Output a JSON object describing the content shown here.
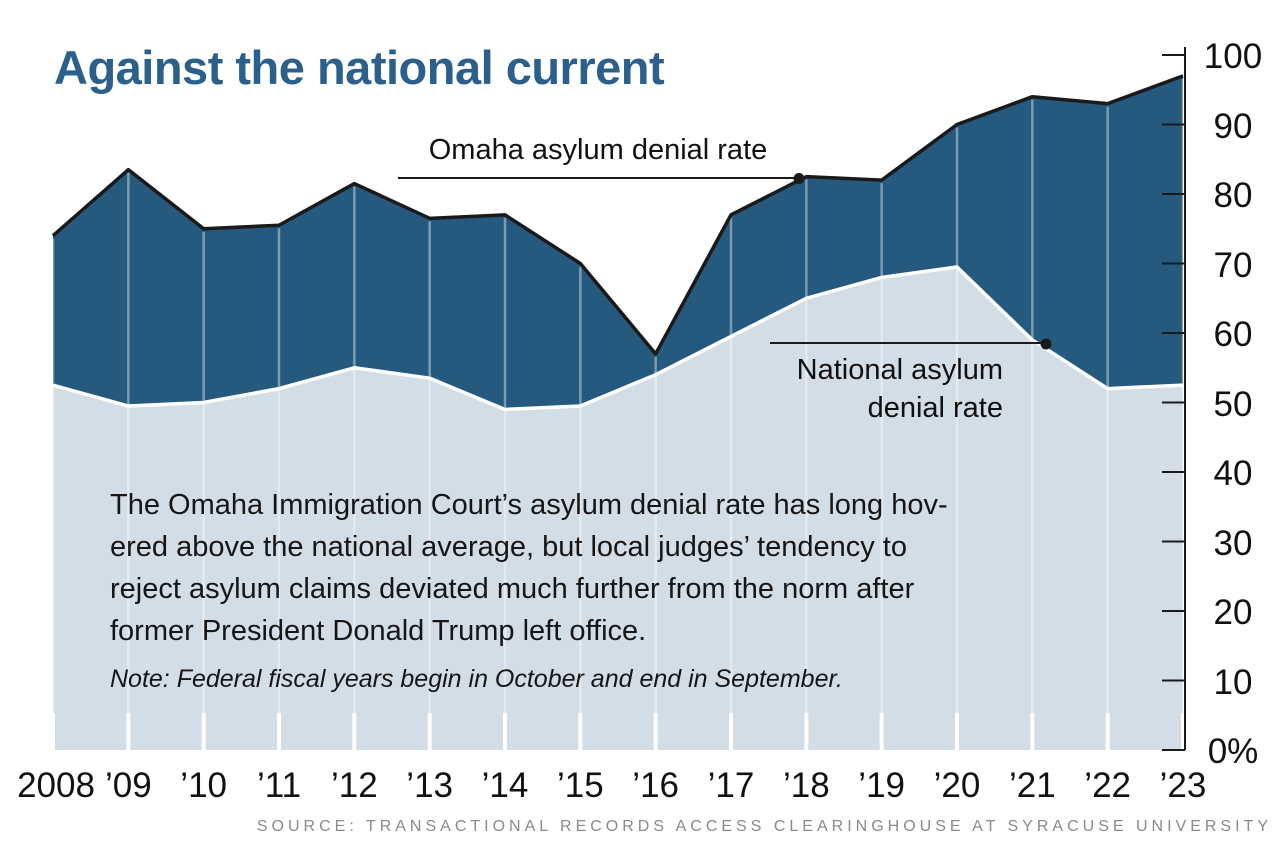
{
  "title": "Against the national current",
  "annotations": {
    "omaha_label": "Omaha asylum denial rate",
    "national_label_line1": "National asylum",
    "national_label_line2": "denial rate"
  },
  "body": {
    "lines": [
      "The Omaha Immigration Court’s asylum denial rate has long hov-",
      "ered above the national average, but local judges’ tendency to",
      "reject asylum claims deviated much further from the norm after",
      "former President Donald Trump left office."
    ],
    "note": "Note: Federal fiscal years begin in October and end in September."
  },
  "source": "SOURCE: TRANSACTIONAL RECORDS ACCESS CLEARINGHOUSE AT SYRACUSE UNIVERSITY",
  "colors": {
    "title_text": "#2c608c",
    "omaha_area": "#25597d",
    "omaha_line": "#1a1a1a",
    "national_area": "#d3dde5",
    "national_line": "#ffffff",
    "axis": "#1a1a1a",
    "source_text": "#8a8a8a"
  },
  "chart_data": {
    "type": "area",
    "title": "Against the national current",
    "x_labels": [
      "2008",
      "’09",
      "’10",
      "’11",
      "’12",
      "’13",
      "’14",
      "’15",
      "’16",
      "’17",
      "’18",
      "’19",
      "’20",
      "’21",
      "’22",
      "’23"
    ],
    "y_tick_labels": [
      "0%",
      "10",
      "20",
      "30",
      "40",
      "50",
      "60",
      "70",
      "80",
      "90",
      "100"
    ],
    "ylim": [
      0,
      100
    ],
    "y_unit": "percent",
    "grid": "off",
    "legend_position": "inline-annotations",
    "series": [
      {
        "name": "Omaha asylum denial rate",
        "values": [
          74,
          83.5,
          75,
          75.5,
          81.5,
          76.5,
          77,
          70,
          57,
          77,
          82.5,
          82,
          90,
          94,
          93,
          97
        ]
      },
      {
        "name": "National asylum denial rate",
        "values": [
          52.5,
          49.5,
          50,
          52,
          55,
          53.5,
          49,
          49.5,
          54,
          59.5,
          65,
          68,
          69.5,
          59,
          52,
          52.5
        ]
      }
    ]
  }
}
